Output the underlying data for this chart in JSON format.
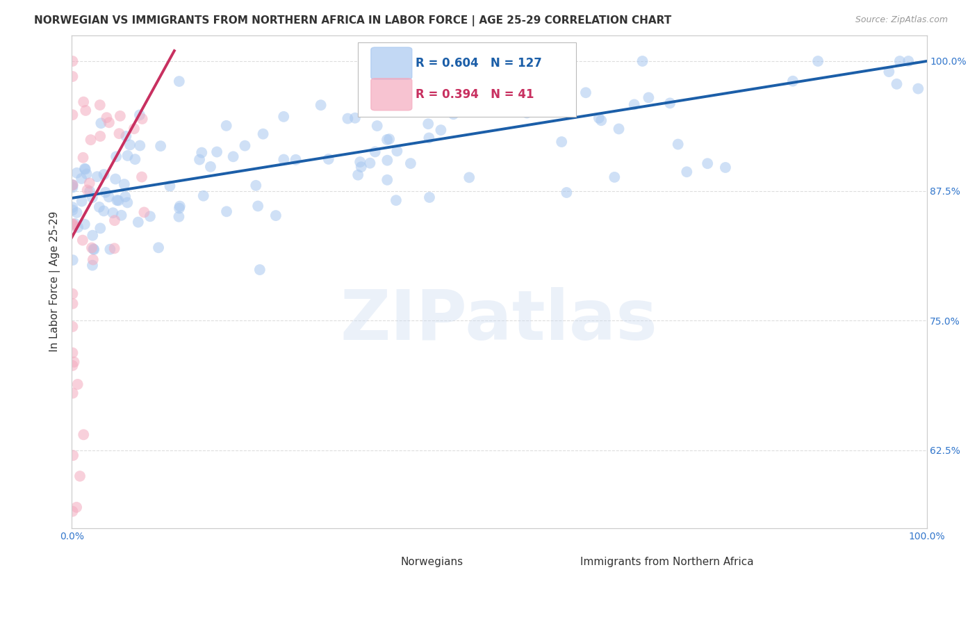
{
  "title": "NORWEGIAN VS IMMIGRANTS FROM NORTHERN AFRICA IN LABOR FORCE | AGE 25-29 CORRELATION CHART",
  "source": "Source: ZipAtlas.com",
  "ylabel": "In Labor Force | Age 25-29",
  "xlim": [
    0.0,
    1.0
  ],
  "ylim": [
    0.55,
    1.025
  ],
  "ytick_positions": [
    0.625,
    0.75,
    0.875,
    1.0
  ],
  "ytick_labels": [
    "62.5%",
    "75.0%",
    "87.5%",
    "100.0%"
  ],
  "xtick_positions": [
    0.0,
    0.1,
    0.2,
    0.3,
    0.4,
    0.5,
    0.6,
    0.7,
    0.8,
    0.9,
    1.0
  ],
  "xtick_labels": [
    "0.0%",
    "",
    "",
    "",
    "",
    "",
    "",
    "",
    "",
    "",
    "100.0%"
  ],
  "blue_color": "#A8C8F0",
  "pink_color": "#F4AABE",
  "blue_line_color": "#1B5EA8",
  "pink_line_color": "#C83060",
  "legend_blue_R": "0.604",
  "legend_blue_N": "127",
  "legend_pink_R": "0.394",
  "legend_pink_N": "41",
  "legend_label_blue": "Norwegians",
  "legend_label_pink": "Immigrants from Northern Africa",
  "watermark": "ZIPatlas",
  "title_fontsize": 11,
  "axis_label_fontsize": 11,
  "tick_fontsize": 10,
  "legend_fontsize": 12,
  "marker_size": 130,
  "marker_alpha": 0.55,
  "grid_color": "#DDDDDD",
  "background_color": "#FFFFFF",
  "axis_color": "#CCCCCC",
  "title_color": "#333333",
  "source_color": "#999999",
  "tick_color": "#3377CC",
  "watermark_color": "#C8D8F0",
  "watermark_alpha": 0.35,
  "watermark_fontsize": 72,
  "blue_trend_x0": 0.0,
  "blue_trend_y0": 0.868,
  "blue_trend_x1": 1.0,
  "blue_trend_y1": 1.0,
  "pink_trend_x0": 0.0,
  "pink_trend_y0": 0.83,
  "pink_trend_x1": 0.12,
  "pink_trend_y1": 1.01
}
